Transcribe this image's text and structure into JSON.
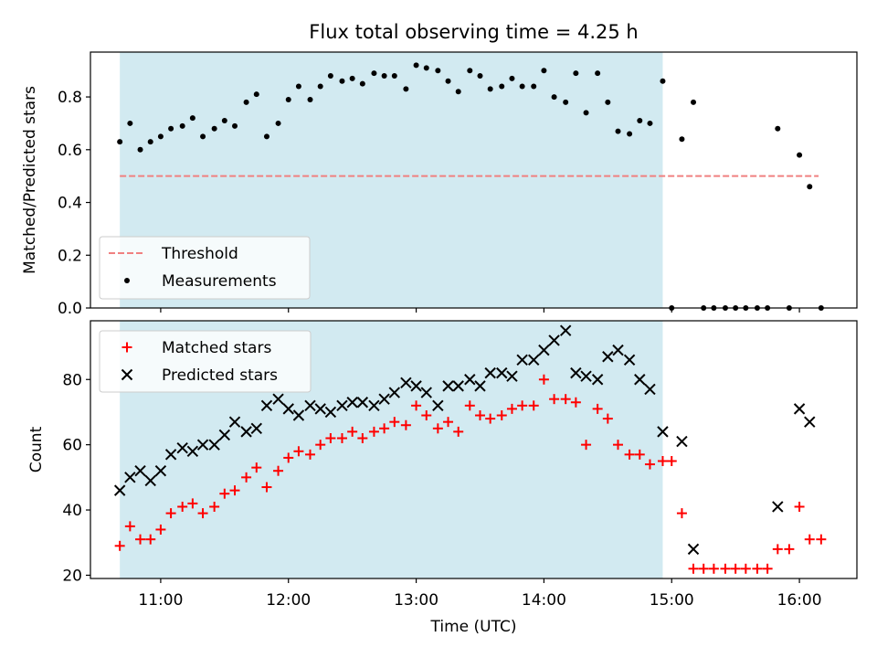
{
  "colors": {
    "shade": "#add8e6",
    "threshold": "#f08080",
    "measurement": "#000000",
    "matched": "#ff0000",
    "predicted": "#000000"
  },
  "chart_data": [
    {
      "type": "scatter",
      "title": "Flux total observing time = 4.25 h",
      "xlabel": "",
      "ylabel": "Matched/Predicted stars",
      "x_unit": "hours UTC",
      "xlim": [
        10.45,
        16.45
      ],
      "ylim": [
        0.0,
        0.97
      ],
      "yticks": [
        0.0,
        0.2,
        0.4,
        0.6,
        0.8
      ],
      "ytick_labels": [
        "0.0",
        "0.2",
        "0.4",
        "0.6",
        "0.8"
      ],
      "shaded_span": [
        10.68,
        14.93
      ],
      "threshold": {
        "name": "Threshold",
        "value": 0.5,
        "x_range": [
          10.68,
          16.15
        ],
        "style": "dashed"
      },
      "legend": {
        "position": "lower-left",
        "entries": [
          "Threshold",
          "Measurements"
        ]
      },
      "series": [
        {
          "name": "Measurements",
          "x": [
            10.68,
            10.76,
            10.84,
            10.92,
            11.0,
            11.08,
            11.17,
            11.25,
            11.33,
            11.42,
            11.5,
            11.58,
            11.67,
            11.75,
            11.83,
            11.92,
            12.0,
            12.08,
            12.17,
            12.25,
            12.33,
            12.42,
            12.5,
            12.58,
            12.67,
            12.75,
            12.83,
            12.92,
            13.0,
            13.08,
            13.17,
            13.25,
            13.33,
            13.42,
            13.5,
            13.58,
            13.67,
            13.75,
            13.83,
            13.92,
            14.0,
            14.08,
            14.17,
            14.25,
            14.33,
            14.42,
            14.5,
            14.58,
            14.67,
            14.75,
            14.83,
            14.93,
            15.0,
            15.08,
            15.17,
            15.25,
            15.33,
            15.42,
            15.5,
            15.58,
            15.67,
            15.75,
            15.83,
            15.92,
            16.0,
            16.08,
            16.17
          ],
          "y": [
            0.63,
            0.7,
            0.6,
            0.63,
            0.65,
            0.68,
            0.69,
            0.72,
            0.65,
            0.68,
            0.71,
            0.69,
            0.78,
            0.81,
            0.65,
            0.7,
            0.79,
            0.84,
            0.79,
            0.84,
            0.88,
            0.86,
            0.87,
            0.85,
            0.89,
            0.88,
            0.88,
            0.83,
            0.92,
            0.91,
            0.9,
            0.86,
            0.82,
            0.9,
            0.88,
            0.83,
            0.84,
            0.87,
            0.84,
            0.84,
            0.9,
            0.8,
            0.78,
            0.89,
            0.74,
            0.89,
            0.78,
            0.67,
            0.66,
            0.71,
            0.7,
            0.86,
            0.0,
            0.64,
            0.78,
            0.0,
            0.0,
            0.0,
            0.0,
            0.0,
            0.0,
            0.0,
            0.68,
            0.0,
            0.58,
            0.46,
            0.0
          ]
        }
      ]
    },
    {
      "type": "scatter",
      "title": "",
      "xlabel": "Time (UTC)",
      "ylabel": "Count",
      "x_unit": "hours UTC",
      "xlim": [
        10.45,
        16.45
      ],
      "ylim": [
        19,
        98
      ],
      "xticks": [
        11,
        12,
        13,
        14,
        15,
        16
      ],
      "xtick_labels": [
        "11:00",
        "12:00",
        "13:00",
        "14:00",
        "15:00",
        "16:00"
      ],
      "yticks": [
        20,
        40,
        60,
        80
      ],
      "ytick_labels": [
        "20",
        "40",
        "60",
        "80"
      ],
      "shaded_span": [
        10.68,
        14.93
      ],
      "legend": {
        "position": "top-left",
        "entries": [
          "Matched stars",
          "Predicted stars"
        ]
      },
      "series": [
        {
          "name": "Matched stars",
          "marker": "+",
          "x": [
            10.68,
            10.76,
            10.84,
            10.92,
            11.0,
            11.08,
            11.17,
            11.25,
            11.33,
            11.42,
            11.5,
            11.58,
            11.67,
            11.75,
            11.83,
            11.92,
            12.0,
            12.08,
            12.17,
            12.25,
            12.33,
            12.42,
            12.5,
            12.58,
            12.67,
            12.75,
            12.83,
            12.92,
            13.0,
            13.08,
            13.17,
            13.25,
            13.33,
            13.42,
            13.5,
            13.58,
            13.67,
            13.75,
            13.83,
            13.92,
            14.0,
            14.08,
            14.17,
            14.25,
            14.33,
            14.42,
            14.5,
            14.58,
            14.67,
            14.75,
            14.83,
            14.93,
            15.0,
            15.08,
            15.17,
            15.25,
            15.33,
            15.42,
            15.5,
            15.58,
            15.67,
            15.75,
            15.83,
            15.92,
            16.0,
            16.08,
            16.17
          ],
          "y": [
            29,
            35,
            31,
            31,
            34,
            39,
            41,
            42,
            39,
            41,
            45,
            46,
            50,
            53,
            47,
            52,
            56,
            58,
            57,
            60,
            62,
            62,
            64,
            62,
            64,
            65,
            67,
            66,
            72,
            69,
            65,
            67,
            64,
            72,
            69,
            68,
            69,
            71,
            72,
            72,
            80,
            74,
            74,
            73,
            60,
            71,
            68,
            60,
            57,
            57,
            54,
            55,
            55,
            39,
            22,
            22,
            22,
            22,
            22,
            22,
            22,
            22,
            28,
            28,
            41,
            31,
            31
          ]
        },
        {
          "name": "Predicted stars",
          "marker": "x",
          "x": [
            10.68,
            10.76,
            10.84,
            10.92,
            11.0,
            11.08,
            11.17,
            11.25,
            11.33,
            11.42,
            11.5,
            11.58,
            11.67,
            11.75,
            11.83,
            11.92,
            12.0,
            12.08,
            12.17,
            12.25,
            12.33,
            12.42,
            12.5,
            12.58,
            12.67,
            12.75,
            12.83,
            12.92,
            13.0,
            13.08,
            13.17,
            13.25,
            13.33,
            13.42,
            13.5,
            13.58,
            13.67,
            13.75,
            13.83,
            13.92,
            14.0,
            14.08,
            14.17,
            14.25,
            14.33,
            14.42,
            14.5,
            14.58,
            14.67,
            14.75,
            14.83,
            14.93,
            15.08,
            15.17,
            15.83,
            16.0,
            16.08
          ],
          "y": [
            46,
            50,
            52,
            49,
            52,
            57,
            59,
            58,
            60,
            60,
            63,
            67,
            64,
            65,
            72,
            74,
            71,
            69,
            72,
            71,
            70,
            72,
            73,
            73,
            72,
            74,
            76,
            79,
            78,
            76,
            72,
            78,
            78,
            80,
            78,
            82,
            82,
            81,
            86,
            86,
            89,
            92,
            95,
            82,
            81,
            80,
            87,
            89,
            86,
            80,
            77,
            64,
            61,
            28,
            41,
            71,
            67
          ]
        }
      ]
    }
  ]
}
